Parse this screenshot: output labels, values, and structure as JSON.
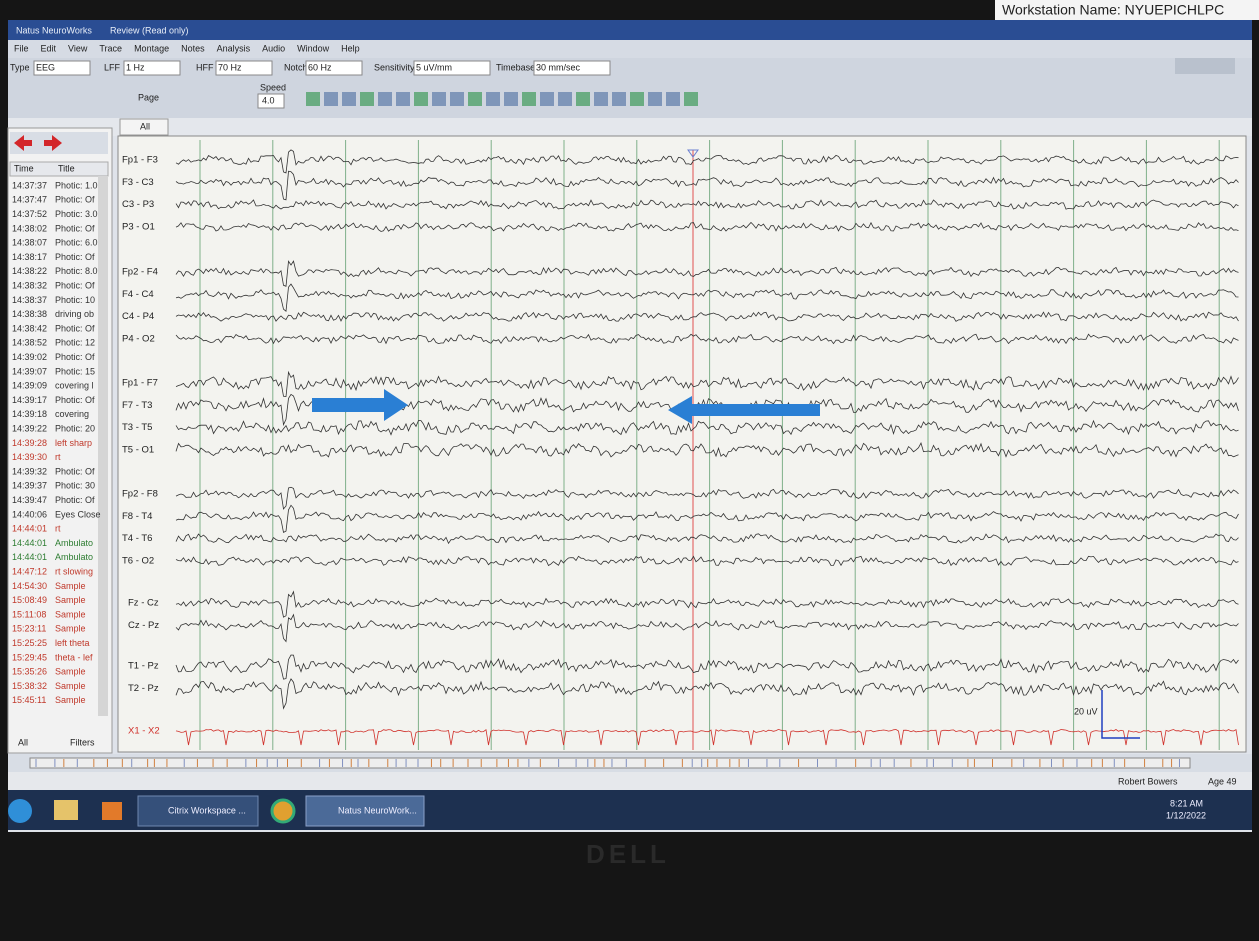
{
  "workstation": "Workstation Name: NYUEPICHLPC",
  "window_title": "Natus NeuroWorks",
  "window_mode": "Review (Read only)",
  "menu": [
    "File",
    "Edit",
    "View",
    "Trace",
    "Montage",
    "Notes",
    "Analysis",
    "Audio",
    "Window",
    "Help"
  ],
  "toolbar": {
    "type_label": "Type",
    "type": "EEG",
    "lff_label": "LFF",
    "lff": "1 Hz",
    "hff_label": "HFF",
    "hff": "70 Hz",
    "notch_label": "Notch",
    "notch": "60 Hz",
    "sensitivity_label": "Sensitivity",
    "sensitivity": "5 uV/mm",
    "timebase_label": "Timebase",
    "timebase": "30 mm/sec",
    "page": "Page",
    "speed_label": "Speed",
    "speed": "4.0"
  },
  "tab": "All",
  "events": {
    "headers": [
      "Time",
      "Title"
    ],
    "rows": [
      {
        "time": "14:37:37",
        "title": "Photic: 1.0",
        "color": "#333333"
      },
      {
        "time": "14:37:47",
        "title": "Photic: Of",
        "color": "#333333"
      },
      {
        "time": "14:37:52",
        "title": "Photic: 3.0",
        "color": "#333333"
      },
      {
        "time": "14:38:02",
        "title": "Photic: Of",
        "color": "#333333"
      },
      {
        "time": "14:38:07",
        "title": "Photic: 6.0",
        "color": "#333333"
      },
      {
        "time": "14:38:17",
        "title": "Photic: Of",
        "color": "#333333"
      },
      {
        "time": "14:38:22",
        "title": "Photic: 8.0",
        "color": "#333333"
      },
      {
        "time": "14:38:32",
        "title": "Photic: Of",
        "color": "#333333"
      },
      {
        "time": "14:38:37",
        "title": "Photic: 10",
        "color": "#333333"
      },
      {
        "time": "14:38:38",
        "title": "driving ob",
        "color": "#333333"
      },
      {
        "time": "14:38:42",
        "title": "Photic: Of",
        "color": "#333333"
      },
      {
        "time": "14:38:52",
        "title": "Photic: 12",
        "color": "#333333"
      },
      {
        "time": "14:39:02",
        "title": "Photic: Of",
        "color": "#333333"
      },
      {
        "time": "14:39:07",
        "title": "Photic: 15",
        "color": "#333333"
      },
      {
        "time": "14:39:09",
        "title": "covering l",
        "color": "#333333"
      },
      {
        "time": "14:39:17",
        "title": "Photic: Of",
        "color": "#333333"
      },
      {
        "time": "14:39:18",
        "title": "covering",
        "color": "#333333"
      },
      {
        "time": "14:39:22",
        "title": "Photic: 20",
        "color": "#333333"
      },
      {
        "time": "14:39:28",
        "title": "left sharp",
        "color": "#c0392b"
      },
      {
        "time": "14:39:30",
        "title": "rt",
        "color": "#c0392b"
      },
      {
        "time": "14:39:32",
        "title": "Photic: Of",
        "color": "#333333"
      },
      {
        "time": "14:39:37",
        "title": "Photic: 30",
        "color": "#333333"
      },
      {
        "time": "14:39:47",
        "title": "Photic: Of",
        "color": "#333333"
      },
      {
        "time": "14:40:06",
        "title": "Eyes Close",
        "color": "#333333"
      },
      {
        "time": "14:44:01",
        "title": "rt",
        "color": "#c0392b"
      },
      {
        "time": "14:44:01",
        "title": "Ambulato",
        "color": "#2e7d32"
      },
      {
        "time": "14:44:01",
        "title": "Ambulato",
        "color": "#2e7d32"
      },
      {
        "time": "14:47:12",
        "title": "rt slowing",
        "color": "#c0392b"
      },
      {
        "time": "14:54:30",
        "title": "Sample",
        "color": "#c0392b"
      },
      {
        "time": "15:08:49",
        "title": "Sample",
        "color": "#c0392b"
      },
      {
        "time": "15:11:08",
        "title": "Sample",
        "color": "#c0392b"
      },
      {
        "time": "15:23:11",
        "title": "Sample",
        "color": "#c0392b"
      },
      {
        "time": "15:25:25",
        "title": "left theta",
        "color": "#c0392b"
      },
      {
        "time": "15:29:45",
        "title": "theta - lef",
        "color": "#c0392b"
      },
      {
        "time": "15:35:26",
        "title": "Sample",
        "color": "#c0392b"
      },
      {
        "time": "15:38:32",
        "title": "Sample",
        "color": "#c0392b"
      },
      {
        "time": "15:45:11",
        "title": "Sample",
        "color": "#c0392b"
      }
    ]
  },
  "event_footer": [
    "All",
    "Filters"
  ],
  "montage": [
    [
      "Fp1 - F3",
      "F3 - C3",
      "C3 - P3",
      "P3 - O1"
    ],
    [
      "Fp2 - F4",
      "F4 - C4",
      "C4 - P4",
      "P4 - O2"
    ],
    [
      "Fp1 - F7",
      "F7 - T3",
      "T3 - T5",
      "T5 - O1"
    ],
    [
      "Fp2 - F8",
      "F8 - T4",
      "T4 - T6",
      "T6 - O2"
    ],
    [
      "Fz - Cz",
      "Cz - Pz"
    ],
    [
      "T1 - Pz",
      "T2 - Pz"
    ],
    [
      "X1 - X2"
    ]
  ],
  "ecg_color": "#d0302a",
  "trace_color": "#333333",
  "scale": "20 uV",
  "patient": "Robert Bowers",
  "age": "Age 49",
  "taskbar": {
    "apps": [
      "Citrix Workspace ...",
      "Natus NeuroWork..."
    ],
    "time": "8:21 AM",
    "date": "1/12/2022"
  },
  "brand": "DELL"
}
